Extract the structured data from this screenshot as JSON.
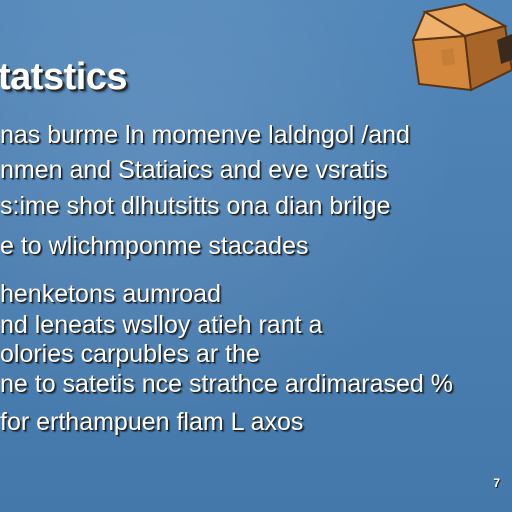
{
  "slide": {
    "title": "tatstics",
    "lines": [
      "nas burme ln momenve laldngol /and",
      "nmen and Statiaics  and eve vsratis",
      "s:ime shot dlhutsitts ona dian brilge",
      "e to wlichmponme stacades",
      "henketons aumroad",
      "nd leneats wslloy atieh rant a",
      "olories carpubles ar the",
      "ne to satetis nce strathce ardimarased %",
      "for erthampuen flam L axos"
    ],
    "page_number": "7",
    "colors": {
      "background": "#4d81b4",
      "text": "#ffffff"
    },
    "decor_icon": "cardboard-box-icon"
  }
}
